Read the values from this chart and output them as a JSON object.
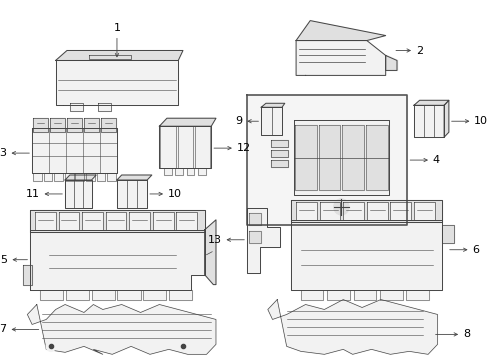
{
  "bg_color": "#ffffff",
  "line_color": "#444444",
  "label_color": "#000000",
  "fig_width": 4.89,
  "fig_height": 3.6,
  "dpi": 100,
  "lw": 0.7,
  "fill_color": "#f2f2f2",
  "dark_fill": "#cccccc",
  "mid_fill": "#e0e0e0"
}
